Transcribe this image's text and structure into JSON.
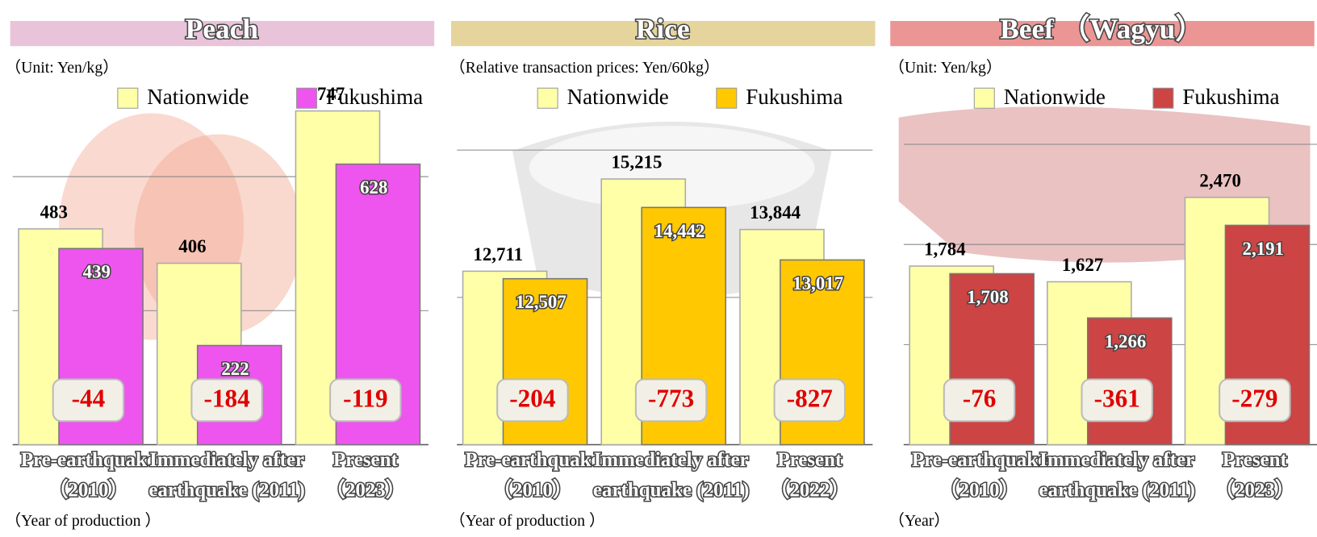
{
  "chart_data": [
    {
      "type": "bar",
      "title": "Peach",
      "note": "（Unit: Yen/kg）",
      "x_note": "（Year of production ）",
      "categories": [
        [
          "Pre-earthquake",
          "（2010）"
        ],
        [
          "Immediately after",
          "earthquake (2011)"
        ],
        [
          "Present",
          "（2023）"
        ]
      ],
      "series": [
        {
          "name": "Nationwide",
          "color": "#ffffa8",
          "values": [
            483,
            406,
            747
          ]
        },
        {
          "name": "Fukushima",
          "color": "#ee55ee",
          "values": [
            439,
            222,
            628
          ]
        }
      ],
      "differences": [
        -44,
        -184,
        -119
      ],
      "ylim": [
        0,
        800
      ],
      "yticks": [
        0,
        300,
        600
      ],
      "grid": true
    },
    {
      "type": "bar",
      "title": "Rice",
      "note": "（Relative transaction prices: Yen/60kg）",
      "x_note": "（Year of production ）",
      "categories": [
        [
          "Pre-earthquake",
          "（2010）"
        ],
        [
          "Immediately after",
          "earthquake (2011)"
        ],
        [
          "Present",
          "（2022）"
        ]
      ],
      "series": [
        {
          "name": "Nationwide",
          "color": "#ffffa8",
          "values": [
            12711,
            15215,
            13844
          ],
          "value_labels": [
            "12,711",
            "15,215",
            "13,844"
          ]
        },
        {
          "name": "Fukushima",
          "color": "#ffc800",
          "values": [
            12507,
            14442,
            13017
          ],
          "value_labels": [
            "12,507",
            "14,442",
            "13,017"
          ]
        }
      ],
      "differences": [
        -204,
        -773,
        -827
      ],
      "ylim": [
        8000,
        17000
      ],
      "yticks": [
        8000,
        12000,
        16000
      ],
      "grid": true
    },
    {
      "type": "bar",
      "title": "Beef （Wagyu）",
      "note": "（Unit: Yen/kg）",
      "x_note": "（Year）",
      "categories": [
        [
          "Pre-earthquake",
          "（2010）"
        ],
        [
          "Immediately after",
          "earthquake (2011)"
        ],
        [
          "Present",
          "（2023）"
        ]
      ],
      "series": [
        {
          "name": "Nationwide",
          "color": "#ffffa8",
          "values": [
            1784,
            1627,
            2470
          ],
          "value_labels": [
            "1,784",
            "1,627",
            "2,470"
          ]
        },
        {
          "name": "Fukushima",
          "color": "#cc4444",
          "values": [
            1708,
            1266,
            2191
          ],
          "value_labels": [
            "1,708",
            "1,266",
            "2,191"
          ]
        }
      ],
      "differences": [
        -76,
        -361,
        -279
      ],
      "ylim": [
        0,
        3000
      ],
      "yticks": [
        0,
        1000,
        2000,
        3000
      ],
      "grid": true
    }
  ]
}
